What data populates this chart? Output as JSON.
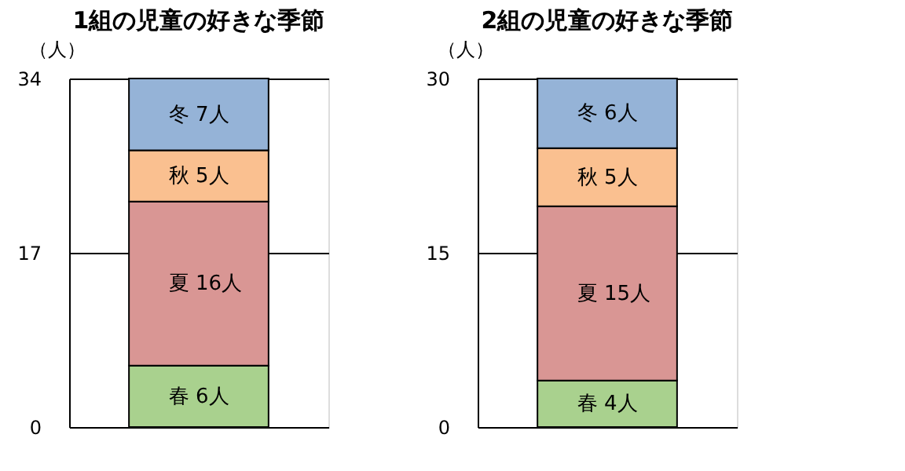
{
  "chart_data": [
    {
      "type": "bar",
      "title": "1組の児童の好きな季節",
      "ylabel": "（人）",
      "categories": [
        null
      ],
      "stacked": true,
      "ylim": [
        0,
        34
      ],
      "yticks": [
        0,
        17,
        34
      ],
      "grid": "y",
      "tick_labels": "y",
      "series": [
        {
          "name": "春",
          "color": "#a9d18e",
          "values": [
            6
          ],
          "value_labels": [
            "6人"
          ]
        },
        {
          "name": "夏",
          "color": "#d99694",
          "values": [
            16
          ],
          "value_labels": [
            "16人"
          ]
        },
        {
          "name": "秋",
          "color": "#fac090",
          "values": [
            5
          ],
          "value_labels": [
            "5人"
          ]
        },
        {
          "name": "冬",
          "color": "#95b3d7",
          "values": [
            7
          ],
          "value_labels": [
            "7人"
          ]
        }
      ]
    },
    {
      "type": "bar",
      "title": "2組の児童の好きな季節",
      "ylabel": "（人）",
      "categories": [
        null
      ],
      "stacked": true,
      "ylim": [
        0,
        30
      ],
      "yticks": [
        0,
        15,
        30
      ],
      "grid": "y",
      "tick_labels": "y",
      "series": [
        {
          "name": "春",
          "color": "#a9d18e",
          "values": [
            4
          ],
          "value_labels": [
            "4人"
          ]
        },
        {
          "name": "夏",
          "color": "#d99694",
          "values": [
            15
          ],
          "value_labels": [
            "15人"
          ]
        },
        {
          "name": "秋",
          "color": "#fac090",
          "values": [
            5
          ],
          "value_labels": [
            "5人"
          ]
        },
        {
          "name": "冬",
          "color": "#95b3d7",
          "values": [
            6
          ],
          "value_labels": [
            "6人"
          ]
        }
      ]
    }
  ]
}
